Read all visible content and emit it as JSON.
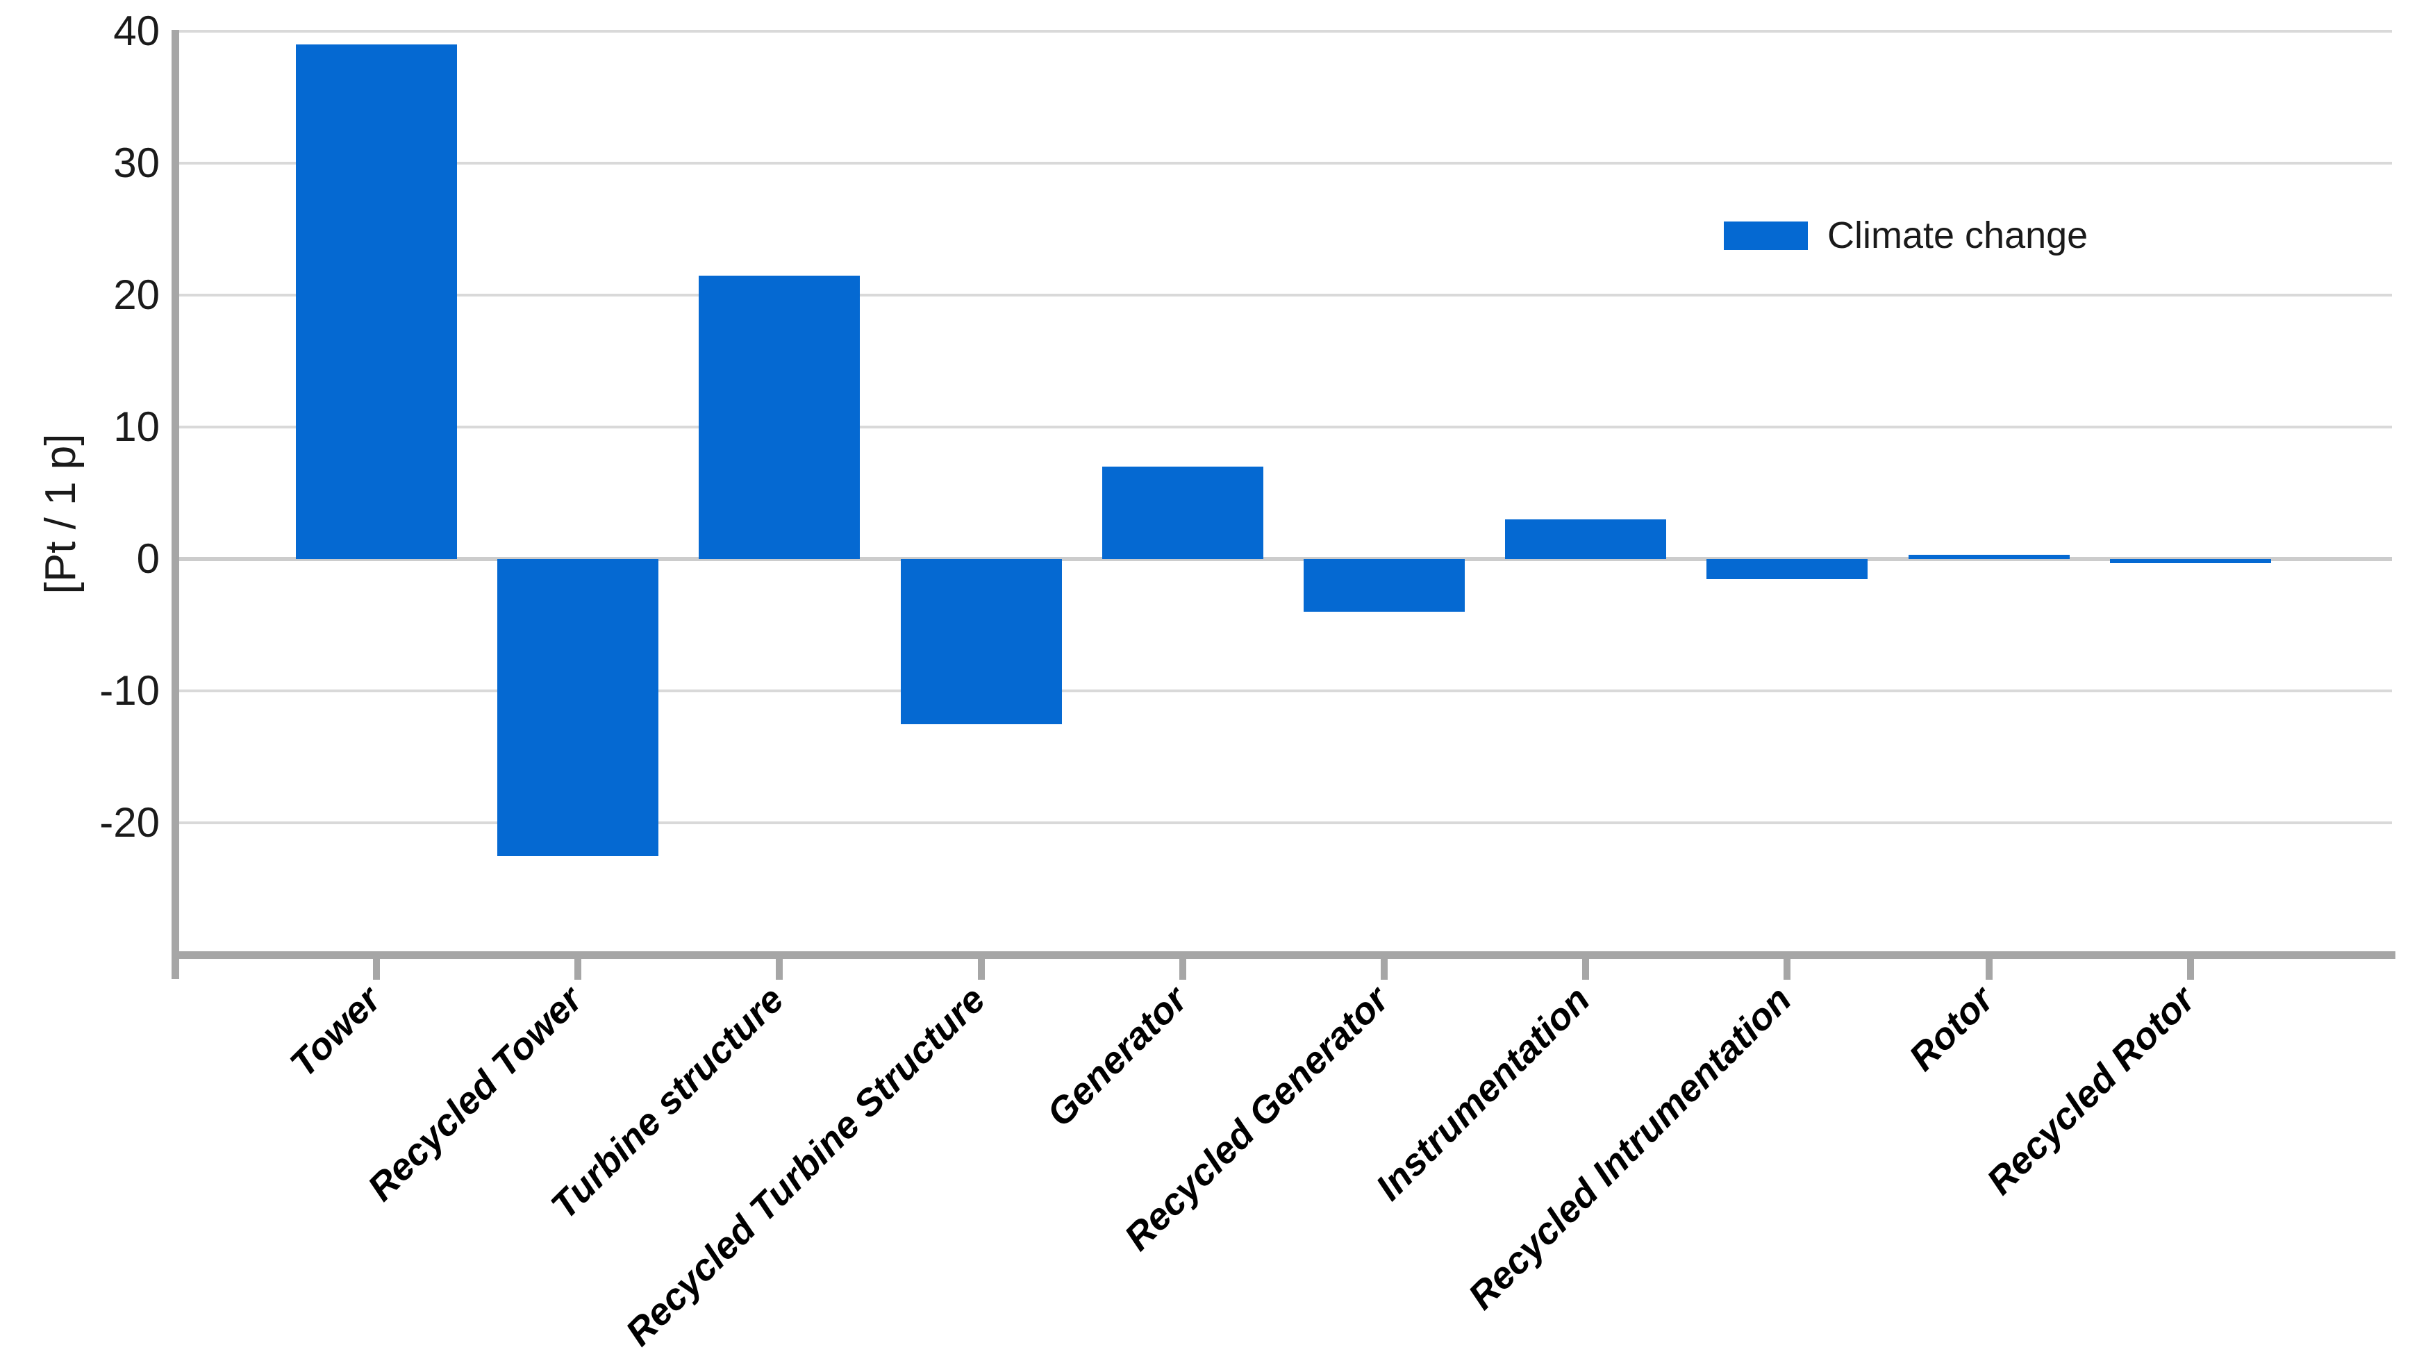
{
  "chart_data": {
    "type": "bar",
    "title": "",
    "xlabel": "",
    "ylabel": "[Pt / 1 p]",
    "categories": [
      "Tower",
      "Recycled Tower",
      "Turbine structure",
      "Recycled Turbine Structure",
      "Generator",
      "Recycled Generator",
      "Instrumentation",
      "Recycled Intrumentation",
      "Rotor",
      "Recycled Rotor"
    ],
    "series": [
      {
        "name": "Climate change",
        "values": [
          39,
          -22.5,
          21.5,
          -12.5,
          7,
          -4,
          3,
          -1.5,
          0.3,
          -0.3
        ]
      }
    ],
    "legend": {
      "label": "Climate change",
      "position": "top-right"
    },
    "y_ticks": [
      40,
      30,
      20,
      10,
      0,
      -10,
      -20
    ],
    "ylim": [
      -30,
      40
    ],
    "grid": true,
    "colors": {
      "bar": "#0569D2",
      "axis": "#A6A6A6",
      "gridline": "#D9D9D9",
      "zero_line": "#CCCCCC",
      "text": "#1A1A1A"
    }
  }
}
